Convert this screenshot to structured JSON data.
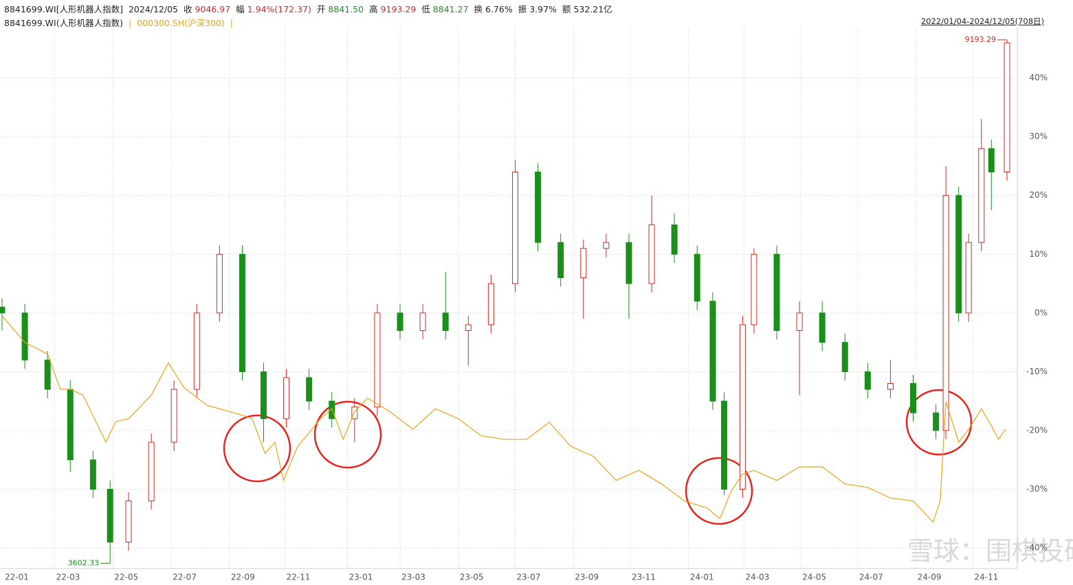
{
  "header": {
    "code": "8841699.WI[人形机器人指数]",
    "date": "2024/12/05",
    "close_label": "收",
    "close": "9046.97",
    "change_label": "幅",
    "change": "1.94%(172.37)",
    "open_label": "开",
    "open": "8841.50",
    "high_label": "高",
    "high": "9193.29",
    "low_label": "低",
    "low": "8841.27",
    "turnover_label": "换",
    "turnover": "6.76%",
    "amplitude_label": "振",
    "amplitude": "3.97%",
    "amount_label": "额",
    "amount": "532.21亿",
    "legend_main": "8841699.WI(人形机器人指数)",
    "separator": "|",
    "legend_compare": "000300.SH(沪深300)",
    "range": "2022/01/04-2024/12/05(708日)"
  },
  "chart_data": {
    "type": "candlestick",
    "xlim": [
      0,
      707
    ],
    "xticks": [
      {
        "value": 0,
        "label": "22-01"
      },
      {
        "value": 37,
        "label": "22-03"
      },
      {
        "value": 78,
        "label": "22-05"
      },
      {
        "value": 119,
        "label": "22-07"
      },
      {
        "value": 160,
        "label": "22-09"
      },
      {
        "value": 199,
        "label": "22-11"
      },
      {
        "value": 243,
        "label": "23-01"
      },
      {
        "value": 280,
        "label": "23-03"
      },
      {
        "value": 321,
        "label": "23-05"
      },
      {
        "value": 361,
        "label": "23-07"
      },
      {
        "value": 402,
        "label": "23-09"
      },
      {
        "value": 442,
        "label": "23-11"
      },
      {
        "value": 483,
        "label": "24-01"
      },
      {
        "value": 522,
        "label": "24-03"
      },
      {
        "value": 562,
        "label": "24-05"
      },
      {
        "value": 602,
        "label": "24-07"
      },
      {
        "value": 643,
        "label": "24-09"
      },
      {
        "value": 683,
        "label": "24-11"
      }
    ],
    "ylim": [
      -43.5,
      48.6
    ],
    "yticks": [
      {
        "value": 40,
        "label": "40%"
      },
      {
        "value": 30,
        "label": "30%"
      },
      {
        "value": 20,
        "label": "20%"
      },
      {
        "value": 10,
        "label": "10%"
      },
      {
        "value": 0,
        "label": "0%"
      },
      {
        "value": -10,
        "label": "-10%"
      },
      {
        "value": -20,
        "label": "-20%"
      },
      {
        "value": -30,
        "label": "-30%"
      },
      {
        "value": -40,
        "label": "-40%"
      }
    ],
    "grid": true,
    "up_color": "#d9251c",
    "down_color": "#1a8f1a",
    "candles": {
      "x": [
        0,
        16,
        32,
        48,
        64,
        76,
        89,
        105,
        121,
        137,
        153,
        169,
        184,
        200,
        216,
        232,
        248,
        264,
        280,
        296,
        312,
        328,
        344,
        361,
        377,
        393,
        409,
        425,
        441,
        457,
        473,
        489,
        500,
        508,
        521,
        529,
        545,
        561,
        577,
        593,
        609,
        625,
        641,
        657,
        664,
        673,
        680,
        689,
        696,
        707
      ],
      "open": [
        1,
        0,
        -8,
        -13,
        -25,
        -30,
        -39,
        -32,
        -22,
        -13,
        0,
        10,
        -10,
        -18,
        -11,
        -15,
        -18,
        -16,
        0,
        -3,
        0,
        -3,
        -2,
        5,
        24,
        12,
        6,
        11,
        12,
        5,
        15,
        10,
        2,
        -15,
        -30,
        -2,
        10,
        -3,
        0,
        -5,
        -10,
        -13,
        -12,
        -17,
        -20,
        20,
        0,
        12,
        28,
        24
      ],
      "high": [
        2.5,
        1.5,
        -6.5,
        -11.5,
        -23.5,
        -28.5,
        -30.5,
        -20.5,
        -11.5,
        1.5,
        11.5,
        11.5,
        -8.5,
        -9.5,
        -9.5,
        -13.5,
        -14.5,
        1.5,
        1.5,
        1.5,
        7,
        -0.5,
        6.5,
        26,
        25.5,
        13.5,
        12.5,
        13.5,
        13.5,
        20,
        17,
        11.5,
        3.5,
        -13.5,
        -0.5,
        11,
        11.5,
        2,
        2,
        -3.5,
        -8.5,
        -8,
        -10.5,
        -15.5,
        25,
        21.5,
        13.5,
        33,
        29.5,
        46.5
      ],
      "low": [
        -3,
        -9.5,
        -14.5,
        -27,
        -31.5,
        -42.6,
        -40.5,
        -33.5,
        -23.5,
        -14.5,
        -1.5,
        -11.5,
        -22,
        -19.5,
        -16.5,
        -19.5,
        -22,
        -17.5,
        -4.5,
        -4.5,
        -4.5,
        -9,
        -3.5,
        3.5,
        10.5,
        4.5,
        -1,
        9.5,
        -1,
        3.5,
        8.5,
        0.5,
        -16.5,
        -31,
        -31.5,
        -3.5,
        -4.5,
        -14,
        -6.5,
        -11.5,
        -14.5,
        -14.5,
        -18.5,
        -21.5,
        -21.5,
        -1.5,
        -1.5,
        10.5,
        17.5,
        22.5
      ],
      "close": [
        0,
        -8,
        -13,
        -25,
        -30,
        -39,
        -32,
        -22,
        -13,
        0,
        10,
        -10,
        -18,
        -11,
        -15,
        -18,
        -16,
        0,
        -3,
        0,
        -3,
        -2,
        5,
        24,
        12,
        6,
        11,
        12,
        5,
        15,
        10,
        2,
        -15,
        -30,
        -2,
        10,
        -3,
        0,
        -5,
        -10,
        -13,
        -12,
        -17,
        -20,
        20,
        0,
        12,
        28,
        24,
        46
      ]
    },
    "compare": {
      "color": "#e8a317",
      "x": [
        0,
        16,
        32,
        41,
        48,
        57,
        73,
        80,
        89,
        105,
        117,
        128,
        144,
        160,
        169,
        176,
        185,
        192,
        198,
        208,
        216,
        224,
        232,
        240,
        248,
        257,
        273,
        289,
        305,
        321,
        337,
        353,
        369,
        385,
        400,
        416,
        432,
        448,
        464,
        480,
        496,
        505,
        513,
        521,
        529,
        545,
        561,
        577,
        593,
        609,
        625,
        641,
        655,
        660,
        664,
        673,
        680,
        689,
        696,
        701,
        706
      ],
      "values": [
        -0.5,
        -5,
        -7,
        -13,
        -13,
        -14,
        -22,
        -18.5,
        -18,
        -14,
        -8.5,
        -12.7,
        -15.7,
        -16.8,
        -17.4,
        -18,
        -23.9,
        -22,
        -28.5,
        -22.7,
        -20.4,
        -18,
        -16.3,
        -21.5,
        -16.8,
        -14.5,
        -16.8,
        -19.8,
        -16.3,
        -18,
        -20.9,
        -21.5,
        -21.5,
        -18.6,
        -22.7,
        -24.4,
        -28.5,
        -26.8,
        -29.1,
        -32,
        -33.2,
        -35,
        -30.3,
        -27.4,
        -26.8,
        -28.5,
        -26.2,
        -26.2,
        -29.1,
        -29.7,
        -31.5,
        -32,
        -35.6,
        -32,
        -15.1,
        -22,
        -19.8,
        -16.3,
        -19.2,
        -21.5,
        -19.8
      ]
    },
    "annotations": {
      "max_label": "9193.29",
      "min_label": "3602.33"
    },
    "watermark": "雪球：围棋投研"
  }
}
